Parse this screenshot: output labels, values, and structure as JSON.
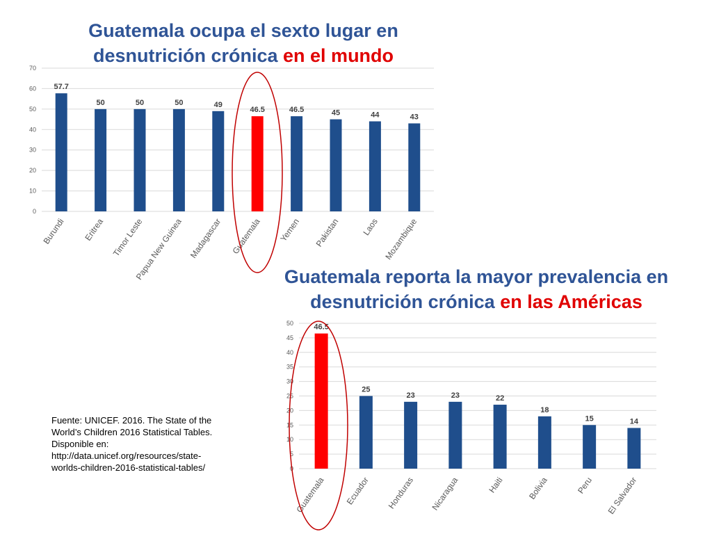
{
  "titles": {
    "chart1": {
      "main": "Guatemala ocupa el sexto lugar en desnutrición crónica",
      "highlight": "en el mundo"
    },
    "chart2": {
      "main": "Guatemala reporta la mayor prevalencia en desnutrición crónica",
      "highlight": "en las Américas"
    }
  },
  "source": {
    "line1": "Fuente: UNICEF. 2016. The State of the",
    "line2": "World’s Children 2016 Statistical Tables.",
    "line3": "Disponible en:",
    "line4": "http://data.unicef.org/resources/state-",
    "line5": "worlds-children-2016-statistical-tables/"
  },
  "colors": {
    "bar": "#1f4e8c",
    "highlight_bar": "#ff0000",
    "circle": "#c00000",
    "title_blue": "#2f5496",
    "title_red": "#e00000"
  },
  "chart_data": [
    {
      "type": "bar",
      "categories": [
        "Burundi",
        "Eritrea",
        "Timor Leste",
        "Papua New Guinea",
        "Madagascar",
        "Guatemala",
        "Yemen",
        "Pakistan",
        "Laos",
        "Mozambique"
      ],
      "values": [
        57.7,
        50,
        50,
        50,
        49,
        46.5,
        46.5,
        45,
        44,
        43
      ],
      "data_labels": [
        "57.7",
        "50",
        "50",
        "50",
        "49",
        "46.5",
        "46.5",
        "45",
        "44",
        "43"
      ],
      "highlight_index": 5,
      "ylim": [
        0,
        70
      ],
      "yticks": [
        0,
        10,
        20,
        30,
        40,
        50,
        60,
        70
      ],
      "grid": true
    },
    {
      "type": "bar",
      "categories": [
        "Guatemala",
        "Ecuador",
        "Honduras",
        "Nicaragua",
        "Haiti",
        "Bolivia",
        "Peru",
        "El Salvador"
      ],
      "values": [
        46.5,
        25,
        23,
        23,
        22,
        18,
        15,
        14
      ],
      "data_labels": [
        "46.5",
        "25",
        "23",
        "23",
        "22",
        "18",
        "15",
        "14"
      ],
      "highlight_index": 0,
      "ylim": [
        0,
        50
      ],
      "yticks": [
        0,
        5,
        10,
        15,
        20,
        25,
        30,
        35,
        40,
        45,
        50
      ],
      "grid": true
    }
  ]
}
